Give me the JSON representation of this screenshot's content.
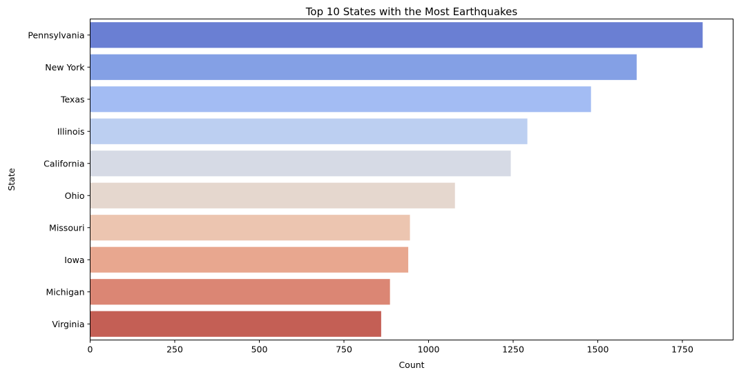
{
  "chart_data": {
    "type": "bar",
    "orientation": "horizontal",
    "title": "Top 10 States with the Most Earthquakes",
    "xlabel": "Count",
    "ylabel": "State",
    "categories": [
      "Pennsylvania",
      "New York",
      "Texas",
      "Illinois",
      "California",
      "Ohio",
      "Missouri",
      "Iowa",
      "Michigan",
      "Virginia"
    ],
    "values": [
      1810,
      1615,
      1480,
      1292,
      1243,
      1078,
      945,
      940,
      886,
      860
    ],
    "colors": [
      "#6a7fd3",
      "#84a0e5",
      "#a3bcf3",
      "#bccff1",
      "#d6dae5",
      "#e5d7ce",
      "#ecc5b0",
      "#e8a78f",
      "#db8674",
      "#c45f55"
    ],
    "xlim": [
      0,
      1900
    ],
    "xticks": [
      0,
      250,
      500,
      750,
      1000,
      1250,
      1500,
      1750
    ],
    "grid": false,
    "legend": "none"
  }
}
